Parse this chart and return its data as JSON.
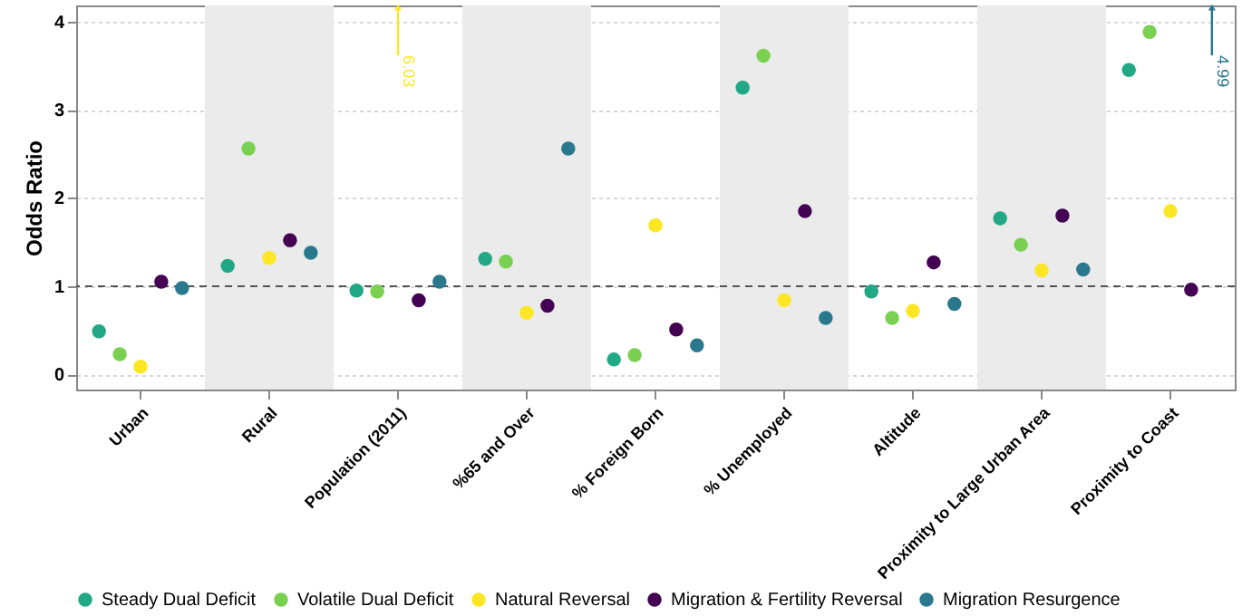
{
  "chart_data": {
    "type": "scatter",
    "ylabel": "Odds Ratio",
    "categories": [
      "Urban",
      "Rural",
      "Population (2011)",
      "%65 and Over",
      "% Foreign Born",
      "% Unemployed",
      "Altitude",
      "Proximity to Large Urban Area",
      "Proximity to Coast"
    ],
    "series": [
      {
        "name": "Steady Dual Deficit",
        "color": "#22a884",
        "values": [
          0.49,
          1.23,
          0.95,
          1.31,
          0.17,
          3.25,
          0.94,
          1.77,
          3.45
        ]
      },
      {
        "name": "Volatile Dual Deficit",
        "color": "#7ad151",
        "values": [
          0.23,
          2.56,
          0.94,
          1.28,
          0.22,
          3.61,
          0.64,
          1.47,
          3.88
        ]
      },
      {
        "name": "Natural Reversal",
        "color": "#fde725",
        "values": [
          0.09,
          1.32,
          null,
          0.7,
          1.69,
          0.84,
          0.72,
          1.18,
          1.85
        ]
      },
      {
        "name": "Migration & Fertility Reversal",
        "color": "#440154",
        "values": [
          1.05,
          1.52,
          0.84,
          0.78,
          0.51,
          1.85,
          1.27,
          1.8,
          0.96
        ]
      },
      {
        "name": "Migration Resurgence",
        "color": "#2a788e",
        "values": [
          0.98,
          1.38,
          1.05,
          2.56,
          0.33,
          0.64,
          0.8,
          1.19,
          null
        ]
      }
    ],
    "annotations": [
      "6.03",
      "4.99"
    ],
    "ylim": [
      -0.17,
      4.18
    ],
    "yticks": [
      0,
      1,
      2,
      3,
      4
    ],
    "grid": "y",
    "legend": "bottom",
    "marker": "circle",
    "ref_lines": [
      {
        "axis": "y",
        "value": 1,
        "color": "#555555",
        "line_style": "dashed"
      }
    ],
    "bands": [
      {
        "axis": "x",
        "from": "Rural",
        "to": "Rural",
        "color": "#ebebeb"
      },
      {
        "axis": "x",
        "from": "%65 and Over",
        "to": "%65 and Over",
        "color": "#ebebeb"
      },
      {
        "axis": "x",
        "from": "% Unemployed",
        "to": "% Unemployed",
        "color": "#ebebeb"
      },
      {
        "axis": "x",
        "from": "Proximity to Large Urban Area",
        "to": "Proximity to Large Urban Area",
        "color": "#ebebeb"
      }
    ]
  }
}
